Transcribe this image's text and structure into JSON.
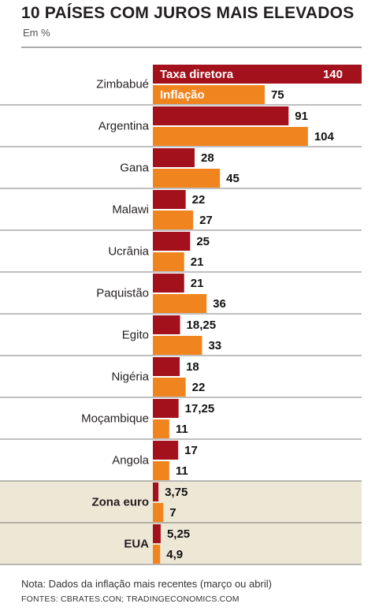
{
  "title": "10 PAÍSES COM JUROS MAIS ELEVADOS",
  "subtitle": "Em %",
  "note": "Nota: Dados da inflação mais recentes (março ou abril)",
  "sources": "FONTES: CBRATES.CON; TRADINGECONOMICS.COM",
  "colors": {
    "taxa": "#a3111c",
    "inflacao": "#f0841f",
    "highlight_bg": "#ede7d6",
    "rule": "#555555"
  },
  "chart_data": {
    "type": "bar",
    "orientation": "horizontal",
    "categories": [
      "Zimbabué",
      "Argentina",
      "Gana",
      "Malawi",
      "Ucrânia",
      "Paquistão",
      "Egito",
      "Nigéria",
      "Moçambique",
      "Angola",
      "Zona euro",
      "EUA"
    ],
    "highlighted_categories": [
      "Zona euro",
      "EUA"
    ],
    "series": [
      {
        "name": "Taxa diretora",
        "color": "#a3111c",
        "values": [
          140,
          91,
          28,
          22,
          25,
          21,
          18.25,
          18,
          17.25,
          17,
          3.75,
          5.25
        ],
        "labels": [
          "140",
          "91",
          "28",
          "22",
          "25",
          "21",
          "18,25",
          "18",
          "17,25",
          "17",
          "3,75",
          "5,25"
        ]
      },
      {
        "name": "Inflação",
        "color": "#f0841f",
        "values": [
          75,
          104,
          45,
          27,
          21,
          36,
          33,
          22,
          11,
          11,
          7,
          4.9
        ],
        "labels": [
          "75",
          "104",
          "45",
          "27",
          "21",
          "36",
          "33",
          "22",
          "11",
          "11",
          "7",
          "4,9"
        ]
      }
    ],
    "legend": "inside-top-bars",
    "xlim": [
      0,
      140
    ]
  }
}
